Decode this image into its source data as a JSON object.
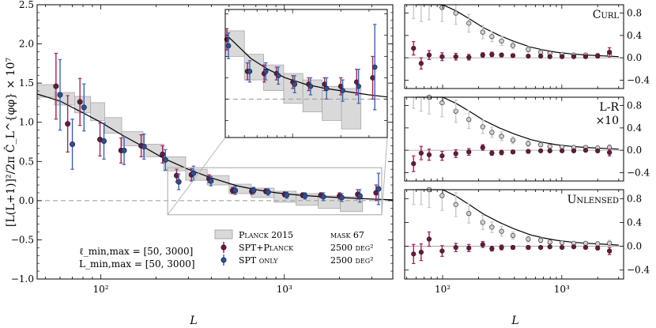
{
  "colors": {
    "planck_box": "#d9d9d9",
    "planck_edge": "#a8a8a8",
    "spt_planck": "#8b1a4a",
    "spt_planck_err": "#a3245a",
    "spt_only": "#3a63b8",
    "model_line": "#000000",
    "zero_line": "#999999",
    "gray_points": "#bdbdbd",
    "dark_points": "#6b1840"
  },
  "chart_data": [
    {
      "type": "scatter",
      "id": "main",
      "xscale": "log",
      "xlim": [
        45,
        3900
      ],
      "ylim": [
        -1.0,
        2.5
      ],
      "xlabel": "L",
      "ylabel": "[L(L+1)]²/2π Ĉ_L^{φφ} × 10⁷",
      "xtick_labels": {
        "100": "10²",
        "1000": "10³"
      },
      "yticks": [
        -1.0,
        -0.5,
        0.0,
        0.5,
        1.0,
        1.5,
        2.0,
        2.5
      ],
      "ytick_labels": [
        "−1.0",
        "−0.5",
        "0.0",
        "0.5",
        "1.0",
        "1.5",
        "2.0",
        "2.5"
      ],
      "series": [
        {
          "name": "Planck 2015",
          "kind": "box",
          "points": [
            [
              40,
              56,
              1.32,
              1.48
            ],
            [
              56,
              72,
              1.22,
              1.38
            ],
            [
              72,
              88,
              1.12,
              1.33
            ],
            [
              88,
              105,
              1.02,
              1.25
            ],
            [
              105,
              130,
              0.86,
              1.06
            ],
            [
              130,
              170,
              0.7,
              0.88
            ],
            [
              170,
              220,
              0.56,
              0.72
            ],
            [
              220,
              290,
              0.38,
              0.56
            ],
            [
              290,
              380,
              0.26,
              0.4
            ],
            [
              380,
              500,
              0.2,
              0.32
            ],
            [
              500,
              660,
              0.09,
              0.21
            ],
            [
              660,
              880,
              0.04,
              0.16
            ],
            [
              880,
              1160,
              -0.02,
              0.12
            ],
            [
              1160,
              1530,
              -0.06,
              0.09
            ],
            [
              1530,
              2020,
              -0.1,
              0.06
            ],
            [
              2020,
              2670,
              -0.14,
              0.05
            ]
          ]
        },
        {
          "name": "SPT+Planck",
          "kind": "errorbar",
          "points": [
            [
              57,
              1.46,
              0.42
            ],
            [
              66,
              0.98,
              0.36
            ],
            [
              77,
              1.26,
              0.3
            ],
            [
              99,
              0.78,
              0.21
            ],
            [
              129,
              0.64,
              0.16
            ],
            [
              166,
              0.7,
              0.14
            ],
            [
              217,
              0.59,
              0.11
            ],
            [
              259,
              0.32,
              0.08
            ],
            [
              312,
              0.33,
              0.08
            ],
            [
              389,
              0.28,
              0.05
            ],
            [
              523,
              0.13,
              0.04
            ],
            [
              665,
              0.12,
              0.04
            ],
            [
              794,
              0.12,
              0.03
            ],
            [
              1004,
              0.08,
              0.03
            ],
            [
              1260,
              0.07,
              0.03
            ],
            [
              1585,
              0.07,
              0.03
            ],
            [
              2000,
              0.06,
              0.04
            ],
            [
              2512,
              0.08,
              0.06
            ],
            [
              3162,
              0.1,
              0.1
            ]
          ]
        },
        {
          "name": "SPT only",
          "kind": "errorbar",
          "points": [
            [
              60,
              1.35,
              0.45
            ],
            [
              70,
              0.72,
              0.32
            ],
            [
              81,
              1.19,
              0.3
            ],
            [
              104,
              0.76,
              0.23
            ],
            [
              134,
              0.64,
              0.18
            ],
            [
              172,
              0.69,
              0.16
            ],
            [
              225,
              0.52,
              0.13
            ],
            [
              266,
              0.24,
              0.1
            ],
            [
              320,
              0.35,
              0.09
            ],
            [
              398,
              0.25,
              0.06
            ],
            [
              540,
              0.13,
              0.05
            ],
            [
              680,
              0.13,
              0.04
            ],
            [
              815,
              0.11,
              0.04
            ],
            [
              1030,
              0.07,
              0.04
            ],
            [
              1295,
              0.06,
              0.04
            ],
            [
              1630,
              0.05,
              0.05
            ],
            [
              2055,
              0.04,
              0.05
            ],
            [
              2580,
              0.06,
              0.08
            ],
            [
              3260,
              0.15,
              0.2
            ]
          ]
        },
        {
          "name": "Model",
          "kind": "line",
          "points": [
            [
              45,
              1.36
            ],
            [
              60,
              1.27
            ],
            [
              80,
              1.12
            ],
            [
              100,
              1.0
            ],
            [
              130,
              0.84
            ],
            [
              170,
              0.69
            ],
            [
              220,
              0.54
            ],
            [
              300,
              0.4
            ],
            [
              400,
              0.29
            ],
            [
              550,
              0.19
            ],
            [
              700,
              0.14
            ],
            [
              900,
              0.1
            ],
            [
              1200,
              0.07
            ],
            [
              1600,
              0.05
            ],
            [
              2200,
              0.035
            ],
            [
              3000,
              0.02
            ],
            [
              3900,
              0.01
            ]
          ]
        }
      ],
      "legend": [
        {
          "label": "Planck 2015",
          "note": "mask 67"
        },
        {
          "label": "SPT+Planck",
          "note": "2500 deg²"
        },
        {
          "label": "SPT only",
          "note": "2500 deg²"
        }
      ],
      "annotations": [
        "ℓ_min,max = [50, 3000]",
        "L_min,max = [50, 3000]"
      ],
      "inset": {
        "xlim": [
          380,
          3900
        ],
        "ylim": [
          -0.18,
          0.42
        ],
        "location": "upper-right"
      }
    },
    {
      "type": "scatter",
      "id": "curl",
      "title": "Curl",
      "xscale": "log",
      "xlim": [
        48,
        3300
      ],
      "ylim": [
        -0.55,
        0.95
      ],
      "yticks": [
        -0.4,
        0.0,
        0.4,
        0.8
      ],
      "ytick_labels": [
        "−0.4",
        "0.0",
        "0.4",
        "0.8"
      ],
      "gray": [
        [
          57,
          1.2,
          0.5
        ],
        [
          66,
          1.05,
          0.4
        ],
        [
          77,
          0.98,
          0.3
        ],
        [
          99,
          0.9,
          0.25
        ],
        [
          129,
          0.8,
          0.2
        ],
        [
          166,
          0.62,
          0.16
        ],
        [
          217,
          0.46,
          0.12
        ],
        [
          259,
          0.38,
          0.09
        ],
        [
          312,
          0.3,
          0.08
        ],
        [
          389,
          0.22,
          0.06
        ],
        [
          523,
          0.15,
          0.05
        ],
        [
          665,
          0.1,
          0.04
        ],
        [
          794,
          0.08,
          0.03
        ],
        [
          1004,
          0.06,
          0.03
        ],
        [
          1260,
          0.05,
          0.03
        ],
        [
          1585,
          0.05,
          0.03
        ],
        [
          2000,
          0.04,
          0.04
        ],
        [
          2512,
          0.05,
          0.05
        ]
      ],
      "dark": [
        [
          57,
          0.17,
          0.12
        ],
        [
          66,
          -0.1,
          0.1
        ],
        [
          77,
          0.05,
          0.08
        ],
        [
          99,
          0.02,
          0.07
        ],
        [
          129,
          0.02,
          0.06
        ],
        [
          166,
          0.01,
          0.05
        ],
        [
          217,
          0.05,
          0.04
        ],
        [
          259,
          0.06,
          0.04
        ],
        [
          312,
          0.05,
          0.03
        ],
        [
          389,
          0.04,
          0.03
        ],
        [
          523,
          0.03,
          0.02
        ],
        [
          665,
          0.03,
          0.02
        ],
        [
          794,
          0.02,
          0.02
        ],
        [
          1004,
          0.02,
          0.02
        ],
        [
          1260,
          0.02,
          0.02
        ],
        [
          1585,
          0.02,
          0.02
        ],
        [
          2000,
          0.03,
          0.03
        ],
        [
          2512,
          0.1,
          0.08
        ]
      ]
    },
    {
      "type": "scatter",
      "id": "lr",
      "title": "L-R",
      "subtitle": "×10",
      "xscale": "log",
      "xlim": [
        48,
        3300
      ],
      "ylim": [
        -0.55,
        0.95
      ],
      "yticks": [
        -0.4,
        0.0,
        0.4,
        0.8
      ],
      "ytick_labels": [
        "−0.4",
        "0.0",
        "0.4",
        "0.8"
      ],
      "gray": [
        [
          57,
          1.25,
          0.5
        ],
        [
          66,
          1.1,
          0.4
        ],
        [
          77,
          0.95,
          0.3
        ],
        [
          99,
          0.85,
          0.25
        ],
        [
          129,
          0.7,
          0.2
        ],
        [
          166,
          0.55,
          0.16
        ],
        [
          217,
          0.42,
          0.12
        ],
        [
          259,
          0.32,
          0.09
        ],
        [
          312,
          0.25,
          0.08
        ],
        [
          389,
          0.18,
          0.06
        ],
        [
          523,
          0.12,
          0.05
        ],
        [
          665,
          0.1,
          0.04
        ],
        [
          794,
          0.07,
          0.03
        ],
        [
          1004,
          0.06,
          0.03
        ],
        [
          1260,
          0.05,
          0.03
        ],
        [
          1585,
          0.05,
          0.03
        ],
        [
          2000,
          0.04,
          0.04
        ],
        [
          2512,
          0.05,
          0.05
        ]
      ],
      "dark": [
        [
          57,
          -0.24,
          0.14
        ],
        [
          66,
          -0.05,
          0.12
        ],
        [
          77,
          -0.08,
          0.1
        ],
        [
          99,
          -0.1,
          0.08
        ],
        [
          129,
          -0.06,
          0.07
        ],
        [
          166,
          -0.03,
          0.06
        ],
        [
          217,
          0.05,
          0.05
        ],
        [
          259,
          -0.05,
          0.04
        ],
        [
          312,
          -0.04,
          0.04
        ],
        [
          389,
          -0.03,
          0.03
        ],
        [
          523,
          -0.02,
          0.03
        ],
        [
          665,
          -0.01,
          0.02
        ],
        [
          794,
          -0.01,
          0.02
        ],
        [
          1004,
          -0.01,
          0.02
        ],
        [
          1260,
          -0.01,
          0.02
        ],
        [
          1585,
          0.0,
          0.02
        ],
        [
          2000,
          -0.01,
          0.03
        ],
        [
          2512,
          -0.04,
          0.06
        ]
      ]
    },
    {
      "type": "scatter",
      "id": "unlensed",
      "title": "Unlensed",
      "xscale": "log",
      "xlim": [
        48,
        3300
      ],
      "ylim": [
        -0.55,
        0.95
      ],
      "yticks": [
        -0.4,
        0.0,
        0.4,
        0.8
      ],
      "ytick_labels": [
        "−0.4",
        "0.0",
        "0.4",
        "0.8"
      ],
      "xlabel": "L",
      "xtick_labels": {
        "100": "10²",
        "1000": "10³"
      },
      "gray": [
        [
          57,
          1.2,
          0.5
        ],
        [
          66,
          1.1,
          0.4
        ],
        [
          77,
          0.95,
          0.3
        ],
        [
          99,
          0.85,
          0.25
        ],
        [
          129,
          0.7,
          0.2
        ],
        [
          166,
          0.55,
          0.16
        ],
        [
          217,
          0.4,
          0.12
        ],
        [
          259,
          0.32,
          0.09
        ],
        [
          312,
          0.25,
          0.08
        ],
        [
          389,
          0.18,
          0.06
        ],
        [
          523,
          0.12,
          0.05
        ],
        [
          665,
          0.1,
          0.04
        ],
        [
          794,
          0.07,
          0.03
        ],
        [
          1004,
          0.06,
          0.03
        ],
        [
          1260,
          0.05,
          0.03
        ],
        [
          1585,
          0.05,
          0.03
        ],
        [
          2000,
          0.04,
          0.04
        ],
        [
          2512,
          0.05,
          0.05
        ]
      ],
      "dark": [
        [
          57,
          -0.13,
          0.16
        ],
        [
          66,
          -0.1,
          0.14
        ],
        [
          77,
          0.12,
          0.12
        ],
        [
          99,
          -0.08,
          0.09
        ],
        [
          129,
          -0.02,
          0.07
        ],
        [
          166,
          -0.03,
          0.06
        ],
        [
          217,
          0.03,
          0.05
        ],
        [
          259,
          -0.04,
          0.04
        ],
        [
          312,
          -0.02,
          0.04
        ],
        [
          389,
          -0.02,
          0.03
        ],
        [
          523,
          -0.02,
          0.03
        ],
        [
          665,
          -0.02,
          0.02
        ],
        [
          794,
          -0.01,
          0.02
        ],
        [
          1004,
          -0.02,
          0.02
        ],
        [
          1260,
          -0.01,
          0.02
        ],
        [
          1585,
          -0.02,
          0.02
        ],
        [
          2000,
          -0.03,
          0.03
        ],
        [
          2512,
          -0.08,
          0.06
        ]
      ]
    }
  ]
}
